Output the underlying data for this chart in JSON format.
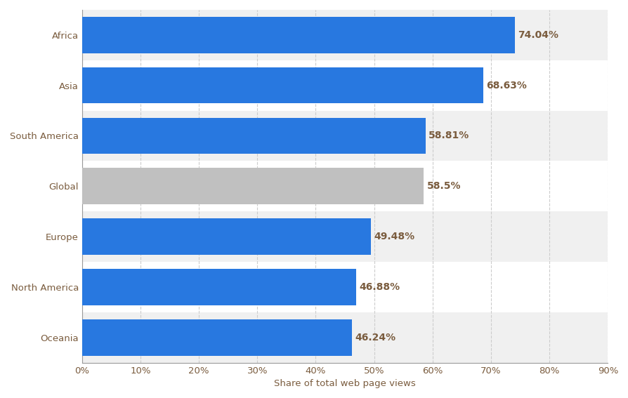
{
  "categories": [
    "Oceania",
    "North America",
    "Europe",
    "Global",
    "South America",
    "Asia",
    "Africa"
  ],
  "values": [
    46.24,
    46.88,
    49.48,
    58.5,
    58.81,
    68.63,
    74.04
  ],
  "labels": [
    "46.24%",
    "46.88%",
    "49.48%",
    "58.5%",
    "58.81%",
    "68.63%",
    "74.04%"
  ],
  "bar_colors": [
    "#2878e0",
    "#2878e0",
    "#2878e0",
    "#c0c0c0",
    "#2878e0",
    "#2878e0",
    "#2878e0"
  ],
  "xlabel": "Share of total web page views",
  "xlim": [
    0,
    90
  ],
  "xticks": [
    0,
    10,
    20,
    30,
    40,
    50,
    60,
    70,
    80,
    90
  ],
  "bar_height": 0.72,
  "background_color": "#ffffff",
  "plot_bg_color": "#ffffff",
  "row_bg_even": "#f0f0f0",
  "row_bg_odd": "#ffffff",
  "label_color": "#7a5c3e",
  "axis_label_color": "#7a5c3e",
  "tick_color": "#7a5c3e",
  "grid_color": "#cccccc",
  "label_fontsize": 10,
  "tick_fontsize": 9.5
}
